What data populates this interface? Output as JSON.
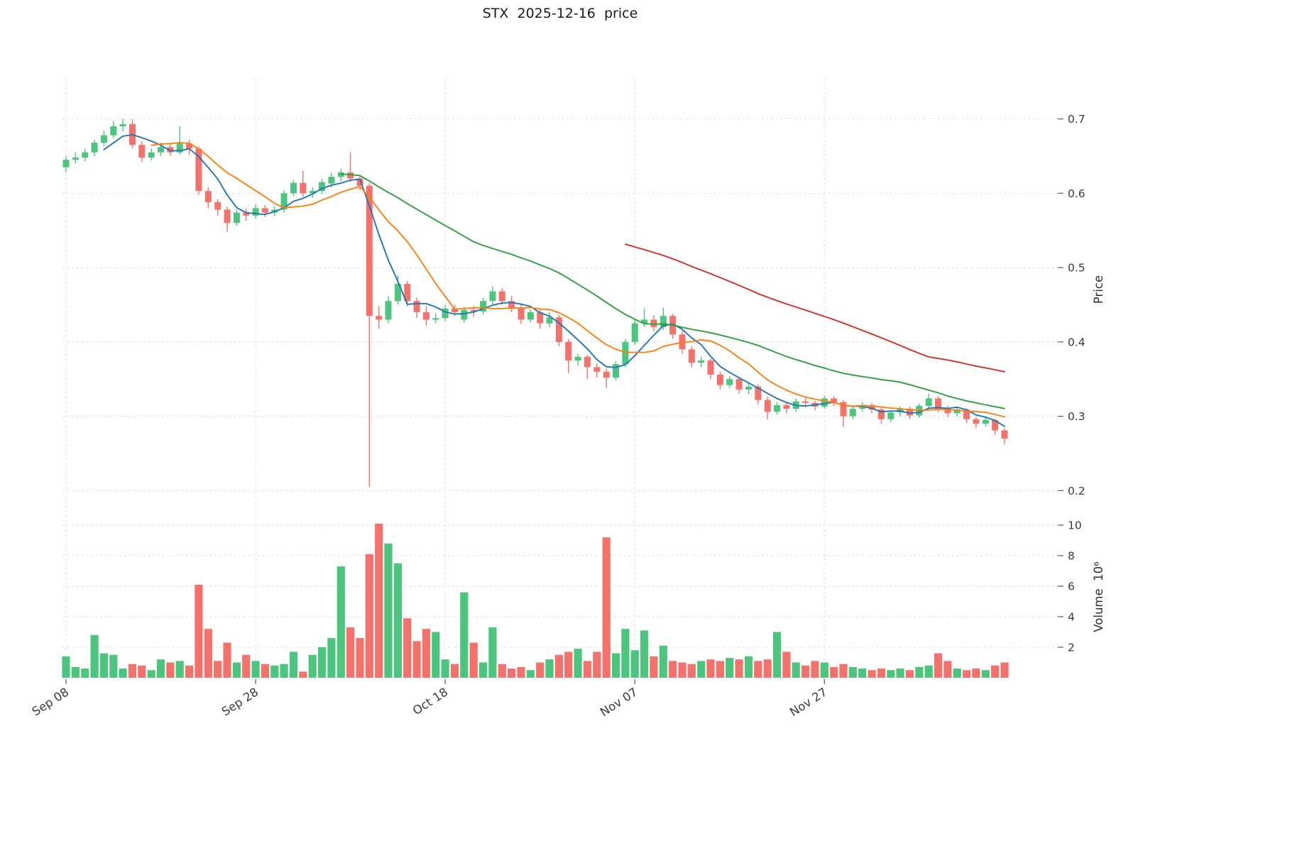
{
  "chart_data": {
    "type": "candlestick_with_volume",
    "title": "STX  2025-12-16  price",
    "price_axis": {
      "label": "Price",
      "range": [
        0.185,
        0.755
      ],
      "ticks": [
        {
          "value": 0.7,
          "label": "0.7"
        },
        {
          "value": 0.6,
          "label": "0.6"
        },
        {
          "value": 0.5,
          "label": "0.5"
        },
        {
          "value": 0.4,
          "label": "0.4"
        },
        {
          "value": 0.3,
          "label": "0.3"
        },
        {
          "value": 0.2,
          "label": "0.2"
        }
      ]
    },
    "volume_axis": {
      "label": "Volume  10⁶",
      "range": [
        0,
        10.56
      ],
      "ticks": [
        {
          "value": 10,
          "label": "10"
        },
        {
          "value": 8,
          "label": "8"
        },
        {
          "value": 6,
          "label": "6"
        },
        {
          "value": 4,
          "label": "4"
        },
        {
          "value": 2,
          "label": "2"
        }
      ]
    },
    "x_ticks": [
      {
        "index": 0,
        "label": "Sep 08"
      },
      {
        "index": 20,
        "label": "Sep 28"
      },
      {
        "index": 40,
        "label": "Oct 18"
      },
      {
        "index": 60,
        "label": "Nov 07"
      },
      {
        "index": 80,
        "label": "Nov 27"
      }
    ],
    "overlays": [
      {
        "name": "MA5",
        "period": 5,
        "color": "#2176b5"
      },
      {
        "name": "MA10",
        "period": 10,
        "color": "#ff7f0e"
      },
      {
        "name": "MA30",
        "period": 30,
        "color": "#2f9e3f"
      },
      {
        "name": "MA60",
        "period": 60,
        "color": "#d62d28"
      }
    ],
    "colors": {
      "up": "#4cc57e",
      "down": "#f4716c"
    },
    "ohlc": [
      [
        0.635,
        0.65,
        0.628,
        0.645
      ],
      [
        0.645,
        0.655,
        0.64,
        0.648
      ],
      [
        0.648,
        0.66,
        0.643,
        0.655
      ],
      [
        0.655,
        0.672,
        0.65,
        0.668
      ],
      [
        0.668,
        0.684,
        0.663,
        0.678
      ],
      [
        0.678,
        0.697,
        0.674,
        0.69
      ],
      [
        0.69,
        0.7,
        0.683,
        0.693
      ],
      [
        0.693,
        0.7,
        0.66,
        0.665
      ],
      [
        0.665,
        0.67,
        0.642,
        0.648
      ],
      [
        0.648,
        0.66,
        0.644,
        0.655
      ],
      [
        0.655,
        0.668,
        0.65,
        0.662
      ],
      [
        0.662,
        0.667,
        0.65,
        0.655
      ],
      [
        0.655,
        0.69,
        0.652,
        0.667
      ],
      [
        0.667,
        0.672,
        0.652,
        0.66
      ],
      [
        0.66,
        0.663,
        0.598,
        0.603
      ],
      [
        0.603,
        0.608,
        0.58,
        0.588
      ],
      [
        0.588,
        0.592,
        0.57,
        0.578
      ],
      [
        0.578,
        0.582,
        0.548,
        0.56
      ],
      [
        0.56,
        0.578,
        0.556,
        0.574
      ],
      [
        0.574,
        0.58,
        0.563,
        0.57
      ],
      [
        0.57,
        0.585,
        0.566,
        0.58
      ],
      [
        0.58,
        0.584,
        0.568,
        0.574
      ],
      [
        0.574,
        0.582,
        0.569,
        0.578
      ],
      [
        0.578,
        0.604,
        0.574,
        0.6
      ],
      [
        0.6,
        0.618,
        0.596,
        0.614
      ],
      [
        0.614,
        0.63,
        0.595,
        0.6
      ],
      [
        0.6,
        0.608,
        0.594,
        0.603
      ],
      [
        0.603,
        0.619,
        0.599,
        0.615
      ],
      [
        0.613,
        0.628,
        0.608,
        0.622
      ],
      [
        0.622,
        0.633,
        0.616,
        0.628
      ],
      [
        0.628,
        0.655,
        0.615,
        0.62
      ],
      [
        0.62,
        0.624,
        0.604,
        0.61
      ],
      [
        0.61,
        0.614,
        0.205,
        0.435
      ],
      [
        0.435,
        0.448,
        0.418,
        0.43
      ],
      [
        0.43,
        0.462,
        0.425,
        0.455
      ],
      [
        0.455,
        0.49,
        0.45,
        0.478
      ],
      [
        0.478,
        0.482,
        0.448,
        0.455
      ],
      [
        0.455,
        0.46,
        0.432,
        0.44
      ],
      [
        0.44,
        0.448,
        0.422,
        0.43
      ],
      [
        0.43,
        0.438,
        0.425,
        0.432
      ],
      [
        0.432,
        0.45,
        0.428,
        0.445
      ],
      [
        0.445,
        0.45,
        0.435,
        0.44
      ],
      [
        0.43,
        0.447,
        0.426,
        0.443
      ],
      [
        0.443,
        0.448,
        0.434,
        0.441
      ],
      [
        0.441,
        0.459,
        0.437,
        0.455
      ],
      [
        0.455,
        0.475,
        0.45,
        0.468
      ],
      [
        0.468,
        0.472,
        0.45,
        0.455
      ],
      [
        0.455,
        0.462,
        0.44,
        0.446
      ],
      [
        0.446,
        0.45,
        0.424,
        0.43
      ],
      [
        0.43,
        0.444,
        0.426,
        0.44
      ],
      [
        0.44,
        0.444,
        0.418,
        0.425
      ],
      [
        0.425,
        0.44,
        0.42,
        0.433
      ],
      [
        0.433,
        0.436,
        0.394,
        0.4
      ],
      [
        0.4,
        0.404,
        0.358,
        0.375
      ],
      [
        0.375,
        0.384,
        0.368,
        0.38
      ],
      [
        0.38,
        0.383,
        0.35,
        0.366
      ],
      [
        0.366,
        0.371,
        0.352,
        0.36
      ],
      [
        0.36,
        0.364,
        0.338,
        0.352
      ],
      [
        0.352,
        0.374,
        0.348,
        0.37
      ],
      [
        0.37,
        0.404,
        0.366,
        0.4
      ],
      [
        0.4,
        0.43,
        0.396,
        0.425
      ],
      [
        0.425,
        0.445,
        0.42,
        0.43
      ],
      [
        0.43,
        0.436,
        0.414,
        0.42
      ],
      [
        0.42,
        0.446,
        0.416,
        0.435
      ],
      [
        0.435,
        0.438,
        0.404,
        0.41
      ],
      [
        0.41,
        0.415,
        0.384,
        0.39
      ],
      [
        0.39,
        0.394,
        0.366,
        0.372
      ],
      [
        0.372,
        0.38,
        0.366,
        0.375
      ],
      [
        0.375,
        0.378,
        0.35,
        0.356
      ],
      [
        0.356,
        0.36,
        0.336,
        0.342
      ],
      [
        0.342,
        0.354,
        0.338,
        0.35
      ],
      [
        0.35,
        0.353,
        0.33,
        0.336
      ],
      [
        0.336,
        0.345,
        0.33,
        0.34
      ],
      [
        0.34,
        0.343,
        0.316,
        0.322
      ],
      [
        0.322,
        0.326,
        0.296,
        0.306
      ],
      [
        0.306,
        0.319,
        0.302,
        0.315
      ],
      [
        0.315,
        0.318,
        0.304,
        0.31
      ],
      [
        0.31,
        0.324,
        0.306,
        0.32
      ],
      [
        0.32,
        0.325,
        0.312,
        0.318
      ],
      [
        0.318,
        0.321,
        0.308,
        0.313
      ],
      [
        0.313,
        0.328,
        0.31,
        0.324
      ],
      [
        0.324,
        0.327,
        0.314,
        0.319
      ],
      [
        0.319,
        0.322,
        0.286,
        0.3
      ],
      [
        0.3,
        0.313,
        0.296,
        0.31
      ],
      [
        0.31,
        0.319,
        0.306,
        0.315
      ],
      [
        0.315,
        0.318,
        0.304,
        0.309
      ],
      [
        0.309,
        0.312,
        0.29,
        0.296
      ],
      [
        0.296,
        0.308,
        0.292,
        0.305
      ],
      [
        0.305,
        0.313,
        0.3,
        0.31
      ],
      [
        0.31,
        0.313,
        0.296,
        0.301
      ],
      [
        0.301,
        0.317,
        0.298,
        0.314
      ],
      [
        0.314,
        0.33,
        0.31,
        0.324
      ],
      [
        0.324,
        0.327,
        0.306,
        0.31
      ],
      [
        0.31,
        0.314,
        0.299,
        0.304
      ],
      [
        0.304,
        0.312,
        0.3,
        0.309
      ],
      [
        0.309,
        0.311,
        0.291,
        0.296
      ],
      [
        0.296,
        0.299,
        0.284,
        0.29
      ],
      [
        0.29,
        0.298,
        0.286,
        0.295
      ],
      [
        0.295,
        0.297,
        0.275,
        0.281
      ],
      [
        0.281,
        0.284,
        0.262,
        0.27
      ]
    ],
    "volume": [
      1.4,
      0.7,
      0.6,
      2.8,
      1.6,
      1.5,
      0.6,
      0.9,
      0.8,
      0.5,
      1.2,
      1.0,
      1.1,
      0.8,
      6.1,
      3.2,
      1.1,
      2.3,
      1.0,
      1.5,
      1.1,
      0.9,
      0.8,
      0.9,
      1.7,
      0.4,
      1.5,
      2.0,
      2.6,
      7.3,
      3.3,
      2.6,
      8.1,
      10.1,
      8.8,
      7.5,
      3.9,
      2.4,
      3.2,
      3.0,
      1.2,
      0.9,
      5.6,
      2.3,
      1.0,
      3.3,
      0.9,
      0.6,
      0.7,
      0.5,
      1.0,
      1.2,
      1.5,
      1.7,
      1.9,
      1.1,
      1.7,
      9.2,
      1.6,
      3.2,
      1.8,
      3.1,
      1.4,
      2.1,
      1.1,
      1.0,
      0.9,
      1.1,
      1.2,
      1.1,
      1.3,
      1.2,
      1.4,
      1.1,
      1.2,
      3.0,
      1.7,
      1.0,
      0.8,
      1.1,
      1.0,
      0.7,
      0.9,
      0.7,
      0.6,
      0.5,
      0.6,
      0.5,
      0.6,
      0.5,
      0.7,
      0.8,
      1.6,
      1.1,
      0.6,
      0.5,
      0.6,
      0.5,
      0.8,
      1.0
    ]
  }
}
